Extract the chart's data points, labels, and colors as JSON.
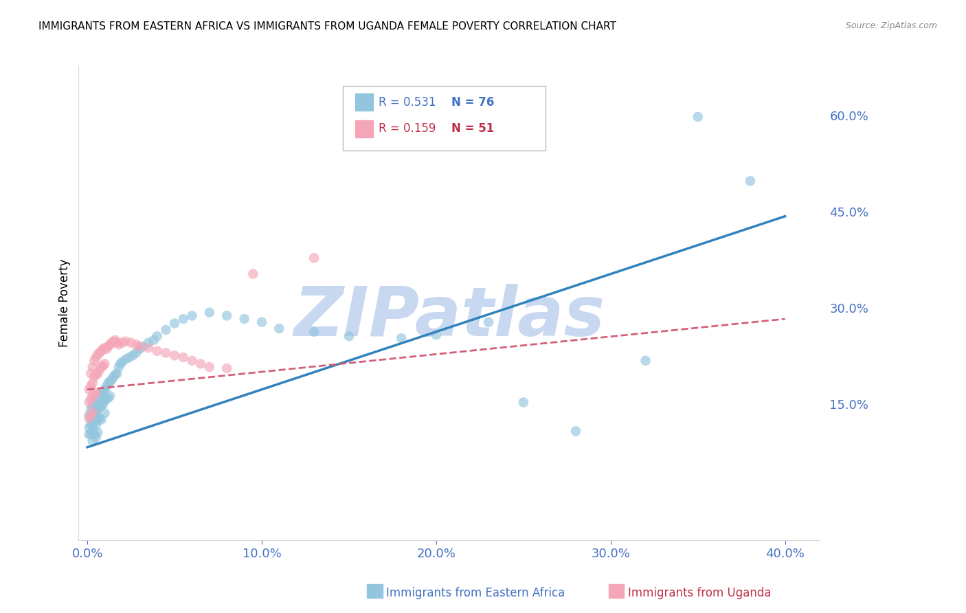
{
  "title": "IMMIGRANTS FROM EASTERN AFRICA VS IMMIGRANTS FROM UGANDA FEMALE POVERTY CORRELATION CHART",
  "source": "Source: ZipAtlas.com",
  "ylabel": "Female Poverty",
  "x_tick_labels": [
    "0.0%",
    "10.0%",
    "20.0%",
    "30.0%",
    "40.0%"
  ],
  "x_tick_values": [
    0.0,
    0.1,
    0.2,
    0.3,
    0.4
  ],
  "y_tick_labels_right": [
    "60.0%",
    "45.0%",
    "30.0%",
    "15.0%"
  ],
  "y_tick_values_right": [
    0.6,
    0.45,
    0.3,
    0.15
  ],
  "xlim": [
    -0.005,
    0.42
  ],
  "ylim": [
    -0.06,
    0.68
  ],
  "legend_r1": "R = 0.531",
  "legend_n1": "N = 76",
  "legend_r2": "R = 0.159",
  "legend_n2": "N = 51",
  "color_blue": "#92c5de",
  "color_pink": "#f4a6b8",
  "color_blue_line": "#3182bd",
  "color_pink_line": "#d4607a",
  "watermark": "ZIPatlas",
  "watermark_color": "#c8d8f0",
  "legend_label_1": "Immigrants from Eastern Africa",
  "legend_label_2": "Immigrants from Uganda",
  "blue_scatter_x": [
    0.001,
    0.001,
    0.001,
    0.002,
    0.002,
    0.002,
    0.002,
    0.003,
    0.003,
    0.003,
    0.003,
    0.003,
    0.004,
    0.004,
    0.004,
    0.004,
    0.005,
    0.005,
    0.005,
    0.005,
    0.006,
    0.006,
    0.006,
    0.006,
    0.007,
    0.007,
    0.007,
    0.008,
    0.008,
    0.008,
    0.009,
    0.009,
    0.01,
    0.01,
    0.01,
    0.011,
    0.011,
    0.012,
    0.012,
    0.013,
    0.013,
    0.014,
    0.015,
    0.016,
    0.017,
    0.018,
    0.019,
    0.02,
    0.022,
    0.024,
    0.026,
    0.028,
    0.03,
    0.032,
    0.035,
    0.038,
    0.04,
    0.045,
    0.05,
    0.055,
    0.06,
    0.07,
    0.08,
    0.09,
    0.1,
    0.11,
    0.13,
    0.15,
    0.18,
    0.2,
    0.23,
    0.25,
    0.28,
    0.32,
    0.35,
    0.38
  ],
  "blue_scatter_y": [
    0.135,
    0.115,
    0.105,
    0.145,
    0.13,
    0.12,
    0.105,
    0.15,
    0.135,
    0.12,
    0.11,
    0.095,
    0.155,
    0.14,
    0.125,
    0.105,
    0.15,
    0.135,
    0.12,
    0.1,
    0.16,
    0.145,
    0.128,
    0.108,
    0.165,
    0.148,
    0.13,
    0.17,
    0.15,
    0.128,
    0.172,
    0.152,
    0.175,
    0.158,
    0.138,
    0.18,
    0.16,
    0.185,
    0.162,
    0.188,
    0.165,
    0.19,
    0.195,
    0.198,
    0.2,
    0.21,
    0.215,
    0.218,
    0.222,
    0.225,
    0.228,
    0.232,
    0.238,
    0.242,
    0.248,
    0.252,
    0.258,
    0.268,
    0.278,
    0.285,
    0.29,
    0.295,
    0.29,
    0.285,
    0.28,
    0.27,
    0.265,
    0.258,
    0.255,
    0.26,
    0.28,
    0.155,
    0.11,
    0.22,
    0.6,
    0.5
  ],
  "pink_scatter_x": [
    0.001,
    0.001,
    0.001,
    0.002,
    0.002,
    0.002,
    0.002,
    0.003,
    0.003,
    0.003,
    0.003,
    0.004,
    0.004,
    0.004,
    0.005,
    0.005,
    0.005,
    0.006,
    0.006,
    0.007,
    0.007,
    0.008,
    0.008,
    0.009,
    0.009,
    0.01,
    0.01,
    0.011,
    0.012,
    0.013,
    0.014,
    0.015,
    0.016,
    0.017,
    0.018,
    0.02,
    0.022,
    0.025,
    0.028,
    0.03,
    0.035,
    0.04,
    0.045,
    0.05,
    0.055,
    0.06,
    0.065,
    0.07,
    0.08,
    0.095,
    0.13
  ],
  "pink_scatter_y": [
    0.175,
    0.155,
    0.13,
    0.2,
    0.18,
    0.16,
    0.135,
    0.21,
    0.185,
    0.165,
    0.14,
    0.22,
    0.195,
    0.168,
    0.225,
    0.198,
    0.17,
    0.23,
    0.2,
    0.232,
    0.205,
    0.235,
    0.21,
    0.238,
    0.212,
    0.24,
    0.215,
    0.238,
    0.242,
    0.245,
    0.248,
    0.25,
    0.252,
    0.248,
    0.245,
    0.248,
    0.25,
    0.248,
    0.245,
    0.242,
    0.24,
    0.235,
    0.232,
    0.228,
    0.225,
    0.22,
    0.215,
    0.21,
    0.208,
    0.355,
    0.38
  ],
  "blue_line_x": [
    0.0,
    0.4
  ],
  "blue_line_y": [
    0.085,
    0.445
  ],
  "pink_line_x": [
    0.0,
    0.4
  ],
  "pink_line_y": [
    0.175,
    0.285
  ],
  "grid_color": "#d8d8d8",
  "background_color": "#ffffff",
  "title_fontsize": 11,
  "axis_label_color": "#4472c4",
  "axis_pink_color": "#c0304a"
}
